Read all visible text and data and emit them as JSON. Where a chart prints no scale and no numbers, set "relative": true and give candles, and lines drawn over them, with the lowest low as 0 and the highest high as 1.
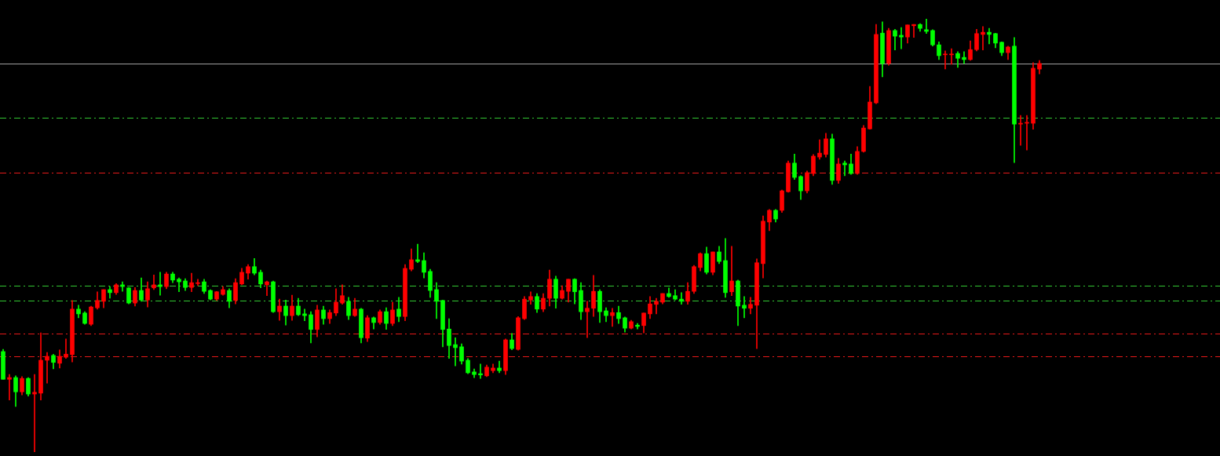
{
  "chart_data": {
    "type": "candlestick",
    "relative": true,
    "categories": [
      null,
      null,
      null,
      null,
      null,
      null,
      null,
      null,
      null,
      null,
      null,
      null,
      null,
      null,
      null,
      null,
      null,
      null,
      null,
      null,
      null,
      null,
      null,
      null,
      null,
      null,
      null,
      null,
      null,
      null,
      null,
      null,
      null,
      null,
      null,
      null,
      null,
      null,
      null,
      null,
      null,
      null,
      null,
      null,
      null,
      null,
      null,
      null,
      null,
      null,
      null,
      null,
      null,
      null,
      null,
      null,
      null,
      null,
      null,
      null,
      null,
      null,
      null,
      null,
      null,
      null,
      null,
      null,
      null,
      null,
      null,
      null,
      null,
      null,
      null,
      null,
      null,
      null,
      null,
      null,
      null,
      null,
      null,
      null,
      null,
      null,
      null,
      null,
      null,
      null,
      null,
      null,
      null,
      null,
      null,
      null,
      null,
      null,
      null,
      null,
      null,
      null,
      null,
      null,
      null,
      null,
      null,
      null,
      null,
      null,
      null,
      null,
      null,
      null,
      null,
      null,
      null,
      null,
      null,
      null,
      null,
      null,
      null,
      null,
      null,
      null,
      null,
      null,
      null,
      null,
      null,
      null,
      null,
      null,
      null,
      null,
      null,
      null,
      null,
      null,
      null,
      null,
      null,
      null,
      null,
      null,
      null,
      null,
      null,
      null,
      null,
      null,
      null,
      null,
      null,
      null,
      null,
      null,
      null,
      null,
      null,
      null,
      null,
      null,
      null,
      null
    ],
    "ohlc": [
      [
        0.232,
        0.237,
        0.168,
        0.168
      ],
      [
        0.168,
        0.179,
        0.12,
        0.172
      ],
      [
        0.172,
        0.176,
        0.105,
        0.139
      ],
      [
        0.139,
        0.174,
        0.132,
        0.17
      ],
      [
        0.17,
        0.172,
        0.129,
        0.134
      ],
      [
        0.134,
        0.179,
        0,
        0.138
      ],
      [
        0.136,
        0.275,
        0.12,
        0.212
      ],
      [
        0.212,
        0.23,
        0.159,
        0.221
      ],
      [
        0.223,
        0.226,
        0.192,
        0.207
      ],
      [
        0.205,
        0.236,
        0.194,
        0.221
      ],
      [
        0.219,
        0.261,
        0.216,
        0.226
      ],
      [
        0.225,
        0.35,
        0.208,
        0.33
      ],
      [
        0.33,
        0.339,
        0.31,
        0.319
      ],
      [
        0.321,
        0.324,
        0.295,
        0.297
      ],
      [
        0.295,
        0.337,
        0.292,
        0.335
      ],
      [
        0.333,
        0.37,
        0.33,
        0.35
      ],
      [
        0.348,
        0.375,
        0.333,
        0.375
      ],
      [
        0.375,
        0.382,
        0.355,
        0.368
      ],
      [
        0.368,
        0.389,
        0.364,
        0.386
      ],
      [
        0.386,
        0.393,
        0.371,
        0.382
      ],
      [
        0.379,
        0.38,
        0.342,
        0.344
      ],
      [
        0.344,
        0.38,
        0.337,
        0.373
      ],
      [
        0.373,
        0.402,
        0.348,
        0.351
      ],
      [
        0.351,
        0.393,
        0.335,
        0.377
      ],
      [
        0.379,
        0.409,
        0.375,
        0.386
      ],
      [
        0.386,
        0.415,
        0.362,
        0.382
      ],
      [
        0.382,
        0.415,
        0.377,
        0.411
      ],
      [
        0.411,
        0.415,
        0.391,
        0.397
      ],
      [
        0.399,
        0.402,
        0.37,
        0.393
      ],
      [
        0.395,
        0.4,
        0.373,
        0.38
      ],
      [
        0.38,
        0.413,
        0.37,
        0.391
      ],
      [
        0.389,
        0.399,
        0.384,
        0.391
      ],
      [
        0.393,
        0.399,
        0.366,
        0.371
      ],
      [
        0.373,
        0.375,
        0.351,
        0.353
      ],
      [
        0.353,
        0.371,
        0.35,
        0.37
      ],
      [
        0.364,
        0.382,
        0.362,
        0.375
      ],
      [
        0.373,
        0.377,
        0.333,
        0.348
      ],
      [
        0.35,
        0.4,
        0.342,
        0.391
      ],
      [
        0.388,
        0.424,
        0.386,
        0.415
      ],
      [
        0.413,
        0.433,
        0.399,
        0.428
      ],
      [
        0.428,
        0.447,
        0.409,
        0.413
      ],
      [
        0.415,
        0.42,
        0.379,
        0.388
      ],
      [
        0.386,
        0.395,
        0.361,
        0.393
      ],
      [
        0.393,
        0.395,
        0.322,
        0.324
      ],
      [
        0.324,
        0.353,
        0.304,
        0.337
      ],
      [
        0.337,
        0.351,
        0.293,
        0.315
      ],
      [
        0.315,
        0.362,
        0.304,
        0.337
      ],
      [
        0.337,
        0.355,
        0.315,
        0.317
      ],
      [
        0.319,
        0.33,
        0.303,
        0.315
      ],
      [
        0.317,
        0.324,
        0.252,
        0.283
      ],
      [
        0.283,
        0.339,
        0.266,
        0.328
      ],
      [
        0.328,
        0.337,
        0.295,
        0.308
      ],
      [
        0.308,
        0.328,
        0.297,
        0.322
      ],
      [
        0.321,
        0.377,
        0.315,
        0.346
      ],
      [
        0.344,
        0.386,
        0.341,
        0.361
      ],
      [
        0.348,
        0.357,
        0.306,
        0.315
      ],
      [
        0.315,
        0.355,
        0.313,
        0.33
      ],
      [
        0.33,
        0.332,
        0.252,
        0.264
      ],
      [
        0.263,
        0.315,
        0.255,
        0.31
      ],
      [
        0.31,
        0.312,
        0.284,
        0.299
      ],
      [
        0.299,
        0.328,
        0.295,
        0.324
      ],
      [
        0.324,
        0.333,
        0.283,
        0.297
      ],
      [
        0.297,
        0.346,
        0.292,
        0.328
      ],
      [
        0.33,
        0.357,
        0.301,
        0.313
      ],
      [
        0.313,
        0.433,
        0.303,
        0.424
      ],
      [
        0.422,
        0.469,
        0.418,
        0.444
      ],
      [
        0.444,
        0.48,
        0.437,
        0.44
      ],
      [
        0.442,
        0.46,
        0.402,
        0.415
      ],
      [
        0.417,
        0.422,
        0.357,
        0.373
      ],
      [
        0.375,
        0.391,
        0.308,
        0.348
      ],
      [
        0.35,
        0.351,
        0.243,
        0.283
      ],
      [
        0.284,
        0.308,
        0.216,
        0.246
      ],
      [
        0.248,
        0.264,
        0.199,
        0.241
      ],
      [
        0.243,
        0.25,
        0.203,
        0.21
      ],
      [
        0.212,
        0.216,
        0.181,
        0.183
      ],
      [
        0.185,
        0.192,
        0.172,
        0.179
      ],
      [
        0.181,
        0.203,
        0.17,
        0.178
      ],
      [
        0.176,
        0.201,
        0.174,
        0.196
      ],
      [
        0.188,
        0.203,
        0.183,
        0.194
      ],
      [
        0.194,
        0.21,
        0.183,
        0.188
      ],
      [
        0.188,
        0.261,
        0.179,
        0.259
      ],
      [
        0.259,
        0.274,
        0.236,
        0.239
      ],
      [
        0.237,
        0.313,
        0.235,
        0.31
      ],
      [
        0.308,
        0.359,
        0.306,
        0.353
      ],
      [
        0.351,
        0.37,
        0.341,
        0.359
      ],
      [
        0.359,
        0.366,
        0.322,
        0.33
      ],
      [
        0.33,
        0.366,
        0.324,
        0.355
      ],
      [
        0.355,
        0.42,
        0.337,
        0.399
      ],
      [
        0.399,
        0.406,
        0.332,
        0.355
      ],
      [
        0.355,
        0.384,
        0.353,
        0.373
      ],
      [
        0.371,
        0.399,
        0.346,
        0.399
      ],
      [
        0.399,
        0.4,
        0.342,
        0.37
      ],
      [
        0.373,
        0.391,
        0.306,
        0.324
      ],
      [
        0.324,
        0.348,
        0.264,
        0.332
      ],
      [
        0.332,
        0.408,
        0.313,
        0.371
      ],
      [
        0.371,
        0.375,
        0.299,
        0.324
      ],
      [
        0.326,
        0.333,
        0.301,
        0.315
      ],
      [
        0.315,
        0.332,
        0.29,
        0.322
      ],
      [
        0.322,
        0.337,
        0.297,
        0.308
      ],
      [
        0.31,
        0.312,
        0.277,
        0.286
      ],
      [
        0.286,
        0.304,
        0.284,
        0.301
      ],
      [
        0.293,
        0.297,
        0.284,
        0.29
      ],
      [
        0.292,
        0.321,
        0.275,
        0.321
      ],
      [
        0.319,
        0.359,
        0.308,
        0.342
      ],
      [
        0.341,
        0.355,
        0.319,
        0.348
      ],
      [
        0.346,
        0.366,
        0.342,
        0.366
      ],
      [
        0.366,
        0.379,
        0.357,
        0.359
      ],
      [
        0.361,
        0.375,
        0.351,
        0.353
      ],
      [
        0.353,
        0.368,
        0.341,
        0.348
      ],
      [
        0.348,
        0.391,
        0.341,
        0.371
      ],
      [
        0.371,
        0.431,
        0.366,
        0.428
      ],
      [
        0.426,
        0.46,
        0.418,
        0.458
      ],
      [
        0.458,
        0.473,
        0.411,
        0.415
      ],
      [
        0.415,
        0.462,
        0.409,
        0.462
      ],
      [
        0.462,
        0.475,
        0.435,
        0.44
      ],
      [
        0.442,
        0.493,
        0.357,
        0.368
      ],
      [
        0.37,
        0.475,
        0.361,
        0.395
      ],
      [
        0.395,
        0.397,
        0.292,
        0.337
      ],
      [
        0.339,
        0.359,
        0.31,
        0.332
      ],
      [
        0.332,
        0.357,
        0.319,
        0.341
      ],
      [
        0.339,
        0.446,
        0.239,
        0.437
      ],
      [
        0.435,
        0.545,
        0.402,
        0.533
      ],
      [
        0.531,
        0.56,
        0.511,
        0.558
      ],
      [
        0.558,
        0.56,
        0.531,
        0.538
      ],
      [
        0.558,
        0.605,
        0.553,
        0.603
      ],
      [
        0.601,
        0.672,
        0.6,
        0.667
      ],
      [
        0.667,
        0.688,
        0.629,
        0.634
      ],
      [
        0.636,
        0.638,
        0.583,
        0.603
      ],
      [
        0.603,
        0.649,
        0.598,
        0.645
      ],
      [
        0.643,
        0.687,
        0.638,
        0.683
      ],
      [
        0.681,
        0.721,
        0.676,
        0.69
      ],
      [
        0.687,
        0.736,
        0.681,
        0.723
      ],
      [
        0.723,
        0.734,
        0.618,
        0.627
      ],
      [
        0.627,
        0.678,
        0.62,
        0.665
      ],
      [
        0.667,
        0.672,
        0.638,
        0.663
      ],
      [
        0.665,
        0.688,
        0.641,
        0.643
      ],
      [
        0.643,
        0.705,
        0.641,
        0.694
      ],
      [
        0.694,
        0.754,
        0.692,
        0.748
      ],
      [
        0.746,
        0.844,
        0.745,
        0.808
      ],
      [
        0.806,
        0.987,
        0.804,
        0.964
      ],
      [
        0.967,
        0.993,
        0.866,
        0.897
      ],
      [
        0.897,
        0.978,
        0.893,
        0.973
      ],
      [
        0.973,
        0.976,
        0.928,
        0.96
      ],
      [
        0.962,
        0.98,
        0.931,
        0.958
      ],
      [
        0.958,
        0.986,
        0.944,
        0.986
      ],
      [
        0.984,
        0.987,
        0.957,
        0.987
      ],
      [
        0.987,
        0.989,
        0.971,
        0.978
      ],
      [
        0.975,
        1,
        0.966,
        0.971
      ],
      [
        0.973,
        0.975,
        0.937,
        0.94
      ],
      [
        0.94,
        0.947,
        0.906,
        0.915
      ],
      [
        0.917,
        0.926,
        0.884,
        0.918
      ],
      [
        0.917,
        0.931,
        0.895,
        0.918
      ],
      [
        0.92,
        0.924,
        0.888,
        0.909
      ],
      [
        0.911,
        0.924,
        0.897,
        0.906
      ],
      [
        0.906,
        0.949,
        0.904,
        0.929
      ],
      [
        0.929,
        0.976,
        0.926,
        0.966
      ],
      [
        0.964,
        0.982,
        0.928,
        0.969
      ],
      [
        0.969,
        0.978,
        0.942,
        0.964
      ],
      [
        0.966,
        0.967,
        0.933,
        0.944
      ],
      [
        0.946,
        0.947,
        0.915,
        0.922
      ],
      [
        0.922,
        0.937,
        0.906,
        0.935
      ],
      [
        0.937,
        0.957,
        0.668,
        0.757
      ],
      [
        0.757,
        0.777,
        0.708,
        0.759
      ],
      [
        0.759,
        0.777,
        0.697,
        0.761
      ],
      [
        0.759,
        0.899,
        0.745,
        0.886
      ],
      [
        0.884,
        0.904,
        0.873,
        0.897
      ]
    ],
    "colors": [
      "#00ff00",
      "#ff0000",
      "#00ff00",
      "#ff0000",
      "#00ff00",
      "#ff0000",
      "#ff0000",
      "#ff0000",
      "#00ff00",
      "#ff0000",
      "#ff0000",
      "#ff0000",
      "#00ff00",
      "#00ff00",
      "#ff0000",
      "#ff0000",
      "#ff0000",
      "#00ff00",
      "#ff0000",
      "#00ff00",
      "#00ff00",
      "#ff0000",
      "#00ff00",
      "#ff0000",
      "#ff0000",
      "#00ff00",
      "#ff0000",
      "#00ff00",
      "#00ff00",
      "#00ff00",
      "#ff0000",
      "#ff0000",
      "#00ff00",
      "#00ff00",
      "#ff0000",
      "#ff0000",
      "#00ff00",
      "#ff0000",
      "#ff0000",
      "#ff0000",
      "#00ff00",
      "#00ff00",
      "#ff0000",
      "#00ff00",
      "#ff0000",
      "#00ff00",
      "#ff0000",
      "#00ff00",
      "#00ff00",
      "#00ff00",
      "#ff0000",
      "#00ff00",
      "#ff0000",
      "#ff0000",
      "#ff0000",
      "#00ff00",
      "#ff0000",
      "#00ff00",
      "#ff0000",
      "#00ff00",
      "#ff0000",
      "#00ff00",
      "#ff0000",
      "#00ff00",
      "#ff0000",
      "#ff0000",
      "#00ff00",
      "#00ff00",
      "#00ff00",
      "#00ff00",
      "#00ff00",
      "#00ff00",
      "#00ff00",
      "#00ff00",
      "#00ff00",
      "#00ff00",
      "#00ff00",
      "#ff0000",
      "#ff0000",
      "#00ff00",
      "#ff0000",
      "#00ff00",
      "#ff0000",
      "#ff0000",
      "#ff0000",
      "#00ff00",
      "#ff0000",
      "#ff0000",
      "#00ff00",
      "#ff0000",
      "#ff0000",
      "#00ff00",
      "#00ff00",
      "#ff0000",
      "#ff0000",
      "#00ff00",
      "#00ff00",
      "#ff0000",
      "#00ff00",
      "#00ff00",
      "#ff0000",
      "#00ff00",
      "#ff0000",
      "#ff0000",
      "#ff0000",
      "#ff0000",
      "#00ff00",
      "#00ff00",
      "#00ff00",
      "#ff0000",
      "#ff0000",
      "#ff0000",
      "#00ff00",
      "#ff0000",
      "#00ff00",
      "#00ff00",
      "#ff0000",
      "#00ff00",
      "#00ff00",
      "#ff0000",
      "#ff0000",
      "#ff0000",
      "#ff0000",
      "#00ff00",
      "#ff0000",
      "#ff0000",
      "#00ff00",
      "#00ff00",
      "#ff0000",
      "#ff0000",
      "#ff0000",
      "#ff0000",
      "#00ff00",
      "#ff0000",
      "#00ff00",
      "#00ff00",
      "#ff0000",
      "#ff0000",
      "#ff0000",
      "#ff0000",
      "#00ff00",
      "#ff0000",
      "#00ff00",
      "#00ff00",
      "#ff0000",
      "#ff0000",
      "#00ff00",
      "#00ff00",
      "#00ff00",
      "#00ff00",
      "#ff0000",
      "#ff0000",
      "#00ff00",
      "#00ff00",
      "#ff0000",
      "#ff0000",
      "#ff0000",
      "#00ff00",
      "#00ff00",
      "#00ff00",
      "#ff0000",
      "#00ff00",
      "#ff0000",
      "#ff0000",
      "#ff0000",
      "#ff0000"
    ],
    "ref_lines": [
      {
        "axis": "y",
        "value": 0.897,
        "color": "#a0a0a0",
        "line_style": "solid"
      },
      {
        "axis": "y",
        "value": 0.772,
        "color": "#32c832",
        "line_style": "dashed"
      },
      {
        "axis": "y",
        "value": 0.645,
        "color": "#e61919",
        "line_style": "dashed"
      },
      {
        "axis": "y",
        "value": 0.384,
        "color": "#32c832",
        "line_style": "dashed"
      },
      {
        "axis": "y",
        "value": 0.35,
        "color": "#32c832",
        "line_style": "dashed"
      },
      {
        "axis": "y",
        "value": 0.274,
        "color": "#e61919",
        "line_style": "dashed"
      },
      {
        "axis": "y",
        "value": 0.221,
        "color": "#e61919",
        "line_style": "dashed"
      }
    ]
  }
}
